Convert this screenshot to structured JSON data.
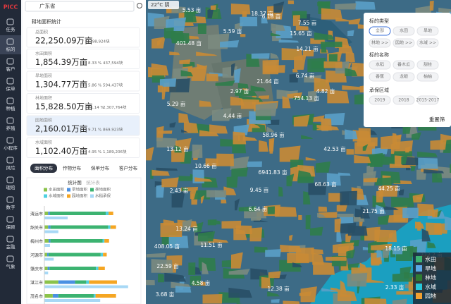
{
  "sidebar": {
    "logo": "PICC",
    "items": [
      "任务",
      "标的",
      "客户",
      "保单",
      "种植",
      "养殖",
      "小程序",
      "风险",
      "理赔",
      "数字",
      "保顾",
      "金融",
      "气象"
    ]
  },
  "search": {
    "value": "广东省"
  },
  "weather": "22°C 阴",
  "stats": {
    "title": "耕地面积统计",
    "cards": [
      {
        "label": "总面积",
        "value": "22,250.09万亩",
        "count": "5,398,924块"
      },
      {
        "label": "水田面积",
        "value": "1,854.39万亩",
        "percent": "8.33 %",
        "count": "437,594块"
      },
      {
        "label": "旱地面积",
        "value": "1,304.77万亩",
        "percent": "5.86 %",
        "count": "594,437块"
      },
      {
        "label": "林地面积",
        "value": "15,828.50万亩",
        "percent": "71.14 %",
        "count": "2,307,764块"
      },
      {
        "label": "园地面积",
        "value": "2,160.01万亩",
        "percent": "9.71 %",
        "count": "869,923块"
      },
      {
        "label": "水域面积",
        "value": "1,102.40万亩",
        "percent": "4.95 %",
        "count": "1,189,206块"
      }
    ]
  },
  "tabs": [
    "面积分布",
    "作物分布",
    "保单分布",
    "客户分布"
  ],
  "chart": {
    "type": "bar",
    "toggles": [
      "统计图",
      "统计表"
    ],
    "categories": [
      "清远市",
      "韶关市",
      "梅州市",
      "河源市",
      "肇庆市",
      "湛江市",
      "茂名市"
    ],
    "xlim": [
      0,
      1000
    ],
    "series": [
      {
        "name": "水田面积",
        "color": "#8bc34a",
        "values": [
          40,
          40,
          45,
          30,
          35,
          150,
          90
        ]
      },
      {
        "name": "旱地面积",
        "color": "#4a90e2",
        "values": [
          20,
          25,
          20,
          15,
          20,
          180,
          60
        ]
      },
      {
        "name": "林地面积",
        "color": "#3cb371",
        "values": [
          600,
          620,
          560,
          560,
          500,
          120,
          380
        ]
      },
      {
        "name": "水域面积",
        "color": "#4dd0e1",
        "values": [
          30,
          25,
          20,
          25,
          25,
          30,
          20
        ]
      },
      {
        "name": "园地面积",
        "color": "#f5a623",
        "values": [
          50,
          60,
          50,
          40,
          70,
          300,
          220
        ]
      },
      {
        "name": "水稻承保",
        "color": "#a7d8f5",
        "values": [
          250,
          150,
          60,
          100,
          40,
          900,
          600
        ]
      }
    ]
  },
  "map_labels": [
    "5.53 亩",
    "18.37 亩",
    "6.18 亩",
    "5.59 亩",
    "401.48 亩",
    "15.65 亩",
    "7.55 亩",
    "14.21 亩",
    "6.74 亩",
    "21.64 亩",
    "4.82 亩",
    "5.29 亩",
    "2.97 亩",
    "754.13 亩",
    "4.44 亩",
    "58.96 亩",
    "13.12 亩",
    "10.66 亩",
    "42.53 亩",
    "6941.83 亩",
    "68.63 亩",
    "44.25 亩",
    "2.43 亩",
    "9.45 亩",
    "21.75 亩",
    "408.05 亩",
    "11.51 亩",
    "22.59 亩",
    "3.68 亩",
    "4.58 亩",
    "12.38 亩",
    "272.2 亩",
    "18.15 亩",
    "13.24 亩",
    "6.64 亩",
    "2.33 亩"
  ],
  "filter": {
    "type_title": "标的类型",
    "types": [
      "全部",
      "水田",
      "旱地",
      "林地 >>",
      "园地 >>",
      "水域 >>"
    ],
    "name_title": "标的名称",
    "names": [
      "水稻",
      "番木瓜",
      "甜桂",
      "香蕉",
      "龙眼",
      "柚柚"
    ],
    "region_title": "承保区域",
    "regions": [
      "2019",
      "2018",
      "2015-2017"
    ],
    "reset": "重置筛"
  },
  "legend": [
    {
      "name": "水田",
      "color": "#3cb371"
    },
    {
      "name": "旱地",
      "color": "#5aa9e6"
    },
    {
      "name": "林地",
      "color": "#2e7d32"
    },
    {
      "name": "水域",
      "color": "#26c6da"
    },
    {
      "name": "园地",
      "color": "#f0a030"
    }
  ]
}
